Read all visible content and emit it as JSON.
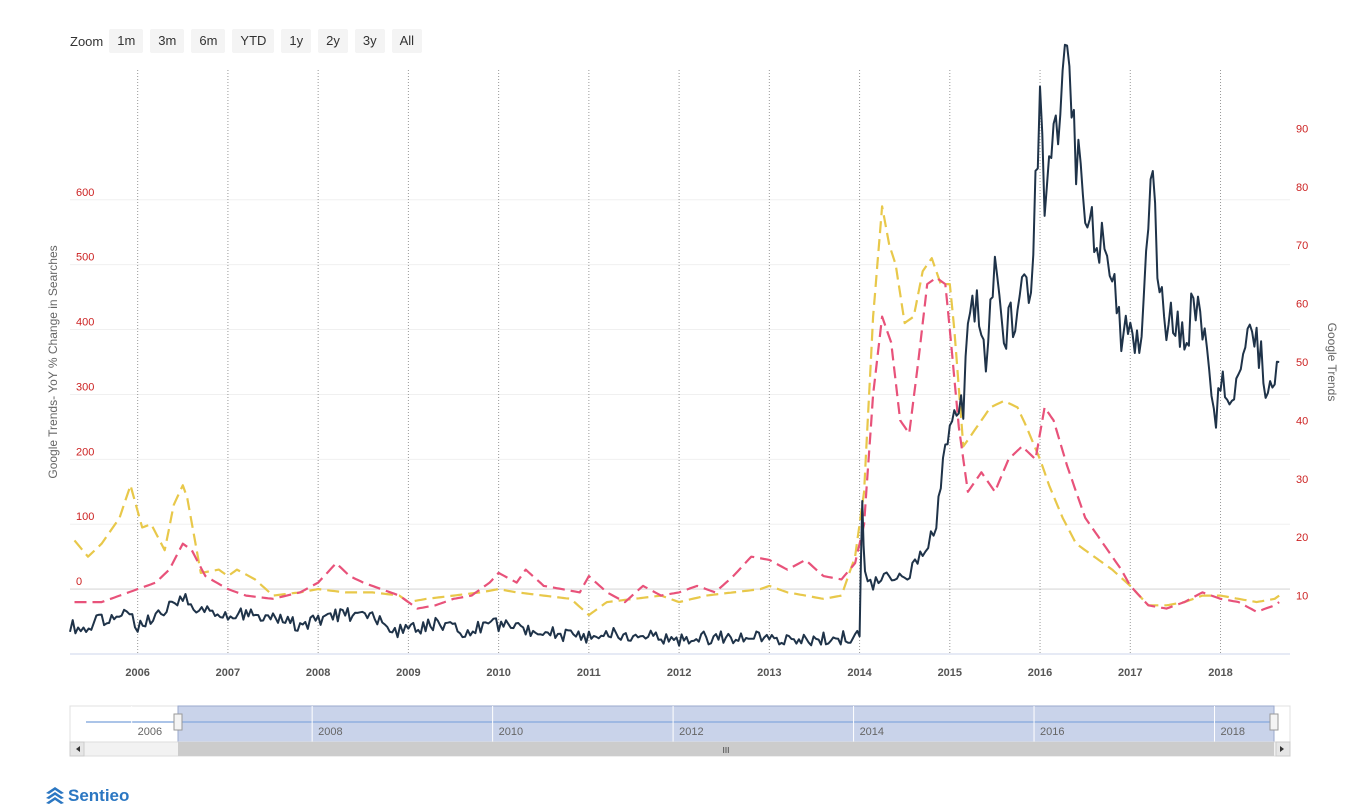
{
  "zoom": {
    "label": "Zoom",
    "buttons": [
      "1m",
      "3m",
      "6m",
      "YTD",
      "1y",
      "2y",
      "3y",
      "All"
    ]
  },
  "brand": {
    "name": "Sentieo"
  },
  "chart_data": {
    "type": "line",
    "xlim": [
      2005.25,
      2018.77
    ],
    "x_ticks": [
      "2006",
      "2007",
      "2008",
      "2009",
      "2010",
      "2011",
      "2012",
      "2013",
      "2014",
      "2015",
      "2016",
      "2017",
      "2018"
    ],
    "y_left": {
      "label": "Google Trends- YoY % Change in Searches",
      "ylim": [
        -100,
        800
      ],
      "ticks": [
        0,
        100,
        200,
        300,
        400,
        500,
        600
      ],
      "tick_color": "#cc2222"
    },
    "y_right": {
      "label": "Google Trends",
      "ylim": [
        0,
        100
      ],
      "ticks": [
        10,
        20,
        30,
        40,
        50,
        60,
        70,
        80,
        90
      ],
      "tick_color": "#cc2222"
    },
    "grid": "vertical dotted at year ticks",
    "series": [
      {
        "color": "#1f3349",
        "dash": "solid",
        "axis": "right",
        "points": [
          [
            2005.25,
            5
          ],
          [
            2005.4,
            4
          ],
          [
            2005.6,
            6
          ],
          [
            2005.85,
            7
          ],
          [
            2006.0,
            5
          ],
          [
            2006.2,
            6
          ],
          [
            2006.35,
            8
          ],
          [
            2006.5,
            10
          ],
          [
            2006.65,
            7
          ],
          [
            2006.8,
            8
          ],
          [
            2007.0,
            6
          ],
          [
            2007.2,
            7
          ],
          [
            2007.5,
            6
          ],
          [
            2007.8,
            5
          ],
          [
            2008.0,
            6
          ],
          [
            2008.3,
            7
          ],
          [
            2008.6,
            6
          ],
          [
            2008.85,
            4
          ],
          [
            2009.0,
            4
          ],
          [
            2009.3,
            5
          ],
          [
            2009.6,
            4
          ],
          [
            2010.0,
            5
          ],
          [
            2010.3,
            4
          ],
          [
            2010.6,
            3.5
          ],
          [
            2011.0,
            3
          ],
          [
            2011.3,
            3.5
          ],
          [
            2011.6,
            3
          ],
          [
            2012.0,
            2.5
          ],
          [
            2012.3,
            2.8
          ],
          [
            2012.6,
            3
          ],
          [
            2013.0,
            2.5
          ],
          [
            2013.3,
            2.3
          ],
          [
            2013.6,
            2.5
          ],
          [
            2013.9,
            3
          ],
          [
            2014.0,
            4
          ],
          [
            2014.03,
            25
          ],
          [
            2014.06,
            14
          ],
          [
            2014.15,
            12
          ],
          [
            2014.3,
            14
          ],
          [
            2014.5,
            13
          ],
          [
            2014.7,
            17
          ],
          [
            2014.85,
            22
          ],
          [
            2014.95,
            35
          ],
          [
            2015.05,
            40
          ],
          [
            2015.15,
            42
          ],
          [
            2015.2,
            55
          ],
          [
            2015.3,
            60
          ],
          [
            2015.4,
            50
          ],
          [
            2015.5,
            65
          ],
          [
            2015.6,
            55
          ],
          [
            2015.7,
            58
          ],
          [
            2015.8,
            62
          ],
          [
            2015.9,
            60
          ],
          [
            2016.0,
            95
          ],
          [
            2016.05,
            72
          ],
          [
            2016.1,
            80
          ],
          [
            2016.2,
            93
          ],
          [
            2016.3,
            100
          ],
          [
            2016.4,
            85
          ],
          [
            2016.5,
            75
          ],
          [
            2016.6,
            72
          ],
          [
            2016.8,
            68
          ],
          [
            2016.9,
            55
          ],
          [
            2017.0,
            58
          ],
          [
            2017.1,
            52
          ],
          [
            2017.2,
            75
          ],
          [
            2017.25,
            80
          ],
          [
            2017.3,
            68
          ],
          [
            2017.4,
            57
          ],
          [
            2017.5,
            58
          ],
          [
            2017.6,
            52
          ],
          [
            2017.7,
            60
          ],
          [
            2017.8,
            55
          ],
          [
            2017.9,
            45
          ],
          [
            2017.95,
            40
          ],
          [
            2018.0,
            48
          ],
          [
            2018.1,
            45
          ],
          [
            2018.2,
            45
          ],
          [
            2018.3,
            58
          ],
          [
            2018.4,
            54
          ],
          [
            2018.5,
            47
          ],
          [
            2018.6,
            48
          ],
          [
            2018.65,
            50
          ]
        ]
      },
      {
        "color": "#e8c84a",
        "dash": "dashed",
        "axis": "left",
        "points": [
          [
            2005.3,
            75
          ],
          [
            2005.45,
            50
          ],
          [
            2005.6,
            70
          ],
          [
            2005.8,
            110
          ],
          [
            2005.92,
            160
          ],
          [
            2006.05,
            95
          ],
          [
            2006.15,
            100
          ],
          [
            2006.3,
            60
          ],
          [
            2006.4,
            130
          ],
          [
            2006.5,
            160
          ],
          [
            2006.55,
            140
          ],
          [
            2006.7,
            25
          ],
          [
            2006.9,
            30
          ],
          [
            2007.0,
            20
          ],
          [
            2007.1,
            30
          ],
          [
            2007.3,
            15
          ],
          [
            2007.5,
            -10
          ],
          [
            2007.8,
            -5
          ],
          [
            2008.0,
            0
          ],
          [
            2008.3,
            -5
          ],
          [
            2008.6,
            -5
          ],
          [
            2008.9,
            -10
          ],
          [
            2009.0,
            -20
          ],
          [
            2009.2,
            -15
          ],
          [
            2009.5,
            -10
          ],
          [
            2009.8,
            -5
          ],
          [
            2010.0,
            0
          ],
          [
            2010.2,
            -5
          ],
          [
            2010.5,
            -10
          ],
          [
            2010.8,
            -15
          ],
          [
            2011.0,
            -40
          ],
          [
            2011.2,
            -20
          ],
          [
            2011.5,
            -15
          ],
          [
            2011.8,
            -10
          ],
          [
            2012.0,
            -20
          ],
          [
            2012.3,
            -10
          ],
          [
            2012.6,
            -5
          ],
          [
            2012.9,
            0
          ],
          [
            2013.0,
            5
          ],
          [
            2013.2,
            -5
          ],
          [
            2013.4,
            -10
          ],
          [
            2013.6,
            -15
          ],
          [
            2013.8,
            -10
          ],
          [
            2013.95,
            50
          ],
          [
            2014.05,
            150
          ],
          [
            2014.15,
            420
          ],
          [
            2014.25,
            590
          ],
          [
            2014.33,
            530
          ],
          [
            2014.4,
            500
          ],
          [
            2014.5,
            410
          ],
          [
            2014.6,
            420
          ],
          [
            2014.7,
            490
          ],
          [
            2014.8,
            510
          ],
          [
            2014.9,
            470
          ],
          [
            2015.0,
            470
          ],
          [
            2015.05,
            400
          ],
          [
            2015.15,
            220
          ],
          [
            2015.3,
            250
          ],
          [
            2015.45,
            280
          ],
          [
            2015.6,
            290
          ],
          [
            2015.75,
            280
          ],
          [
            2015.85,
            250
          ],
          [
            2016.0,
            200
          ],
          [
            2016.1,
            160
          ],
          [
            2016.25,
            110
          ],
          [
            2016.4,
            70
          ],
          [
            2016.6,
            50
          ],
          [
            2016.8,
            30
          ],
          [
            2017.0,
            5
          ],
          [
            2017.2,
            -25
          ],
          [
            2017.4,
            -25
          ],
          [
            2017.6,
            -20
          ],
          [
            2017.8,
            -10
          ],
          [
            2018.0,
            -10
          ],
          [
            2018.2,
            -15
          ],
          [
            2018.4,
            -20
          ],
          [
            2018.6,
            -15
          ],
          [
            2018.65,
            -10
          ]
        ]
      },
      {
        "color": "#e8527a",
        "dash": "dashed",
        "axis": "left",
        "points": [
          [
            2005.3,
            -20
          ],
          [
            2005.6,
            -20
          ],
          [
            2005.8,
            -10
          ],
          [
            2006.0,
            0
          ],
          [
            2006.2,
            10
          ],
          [
            2006.35,
            30
          ],
          [
            2006.5,
            70
          ],
          [
            2006.6,
            60
          ],
          [
            2006.75,
            20
          ],
          [
            2007.0,
            0
          ],
          [
            2007.2,
            -10
          ],
          [
            2007.5,
            -15
          ],
          [
            2007.8,
            -5
          ],
          [
            2008.0,
            10
          ],
          [
            2008.2,
            40
          ],
          [
            2008.35,
            20
          ],
          [
            2008.5,
            10
          ],
          [
            2008.7,
            0
          ],
          [
            2008.9,
            -10
          ],
          [
            2009.1,
            -30
          ],
          [
            2009.3,
            -25
          ],
          [
            2009.5,
            -15
          ],
          [
            2009.7,
            -10
          ],
          [
            2009.9,
            10
          ],
          [
            2010.0,
            25
          ],
          [
            2010.2,
            10
          ],
          [
            2010.3,
            30
          ],
          [
            2010.5,
            5
          ],
          [
            2010.7,
            0
          ],
          [
            2010.9,
            -5
          ],
          [
            2011.0,
            20
          ],
          [
            2011.2,
            -5
          ],
          [
            2011.4,
            -20
          ],
          [
            2011.6,
            5
          ],
          [
            2011.8,
            -10
          ],
          [
            2012.0,
            -5
          ],
          [
            2012.2,
            5
          ],
          [
            2012.4,
            -5
          ],
          [
            2012.6,
            20
          ],
          [
            2012.8,
            50
          ],
          [
            2013.0,
            45
          ],
          [
            2013.2,
            30
          ],
          [
            2013.4,
            45
          ],
          [
            2013.6,
            20
          ],
          [
            2013.8,
            15
          ],
          [
            2013.95,
            40
          ],
          [
            2014.05,
            100
          ],
          [
            2014.15,
            300
          ],
          [
            2014.25,
            420
          ],
          [
            2014.35,
            380
          ],
          [
            2014.45,
            260
          ],
          [
            2014.55,
            240
          ],
          [
            2014.65,
            350
          ],
          [
            2014.75,
            470
          ],
          [
            2014.85,
            480
          ],
          [
            2014.95,
            470
          ],
          [
            2015.0,
            400
          ],
          [
            2015.1,
            250
          ],
          [
            2015.2,
            150
          ],
          [
            2015.35,
            180
          ],
          [
            2015.5,
            150
          ],
          [
            2015.65,
            200
          ],
          [
            2015.8,
            220
          ],
          [
            2015.95,
            200
          ],
          [
            2016.05,
            280
          ],
          [
            2016.15,
            260
          ],
          [
            2016.3,
            190
          ],
          [
            2016.5,
            110
          ],
          [
            2016.7,
            70
          ],
          [
            2016.9,
            30
          ],
          [
            2017.0,
            5
          ],
          [
            2017.2,
            -25
          ],
          [
            2017.4,
            -30
          ],
          [
            2017.6,
            -20
          ],
          [
            2017.8,
            -5
          ],
          [
            2018.0,
            -15
          ],
          [
            2018.2,
            -20
          ],
          [
            2018.4,
            -35
          ],
          [
            2018.6,
            -25
          ],
          [
            2018.65,
            -20
          ]
        ]
      }
    ]
  },
  "navigator": {
    "tick_labels": [
      "2006",
      "2008",
      "2010",
      "2012",
      "2014",
      "2016",
      "2018"
    ],
    "scroll_grip": "III",
    "selected_fraction": [
      0.08,
      1.0
    ]
  }
}
